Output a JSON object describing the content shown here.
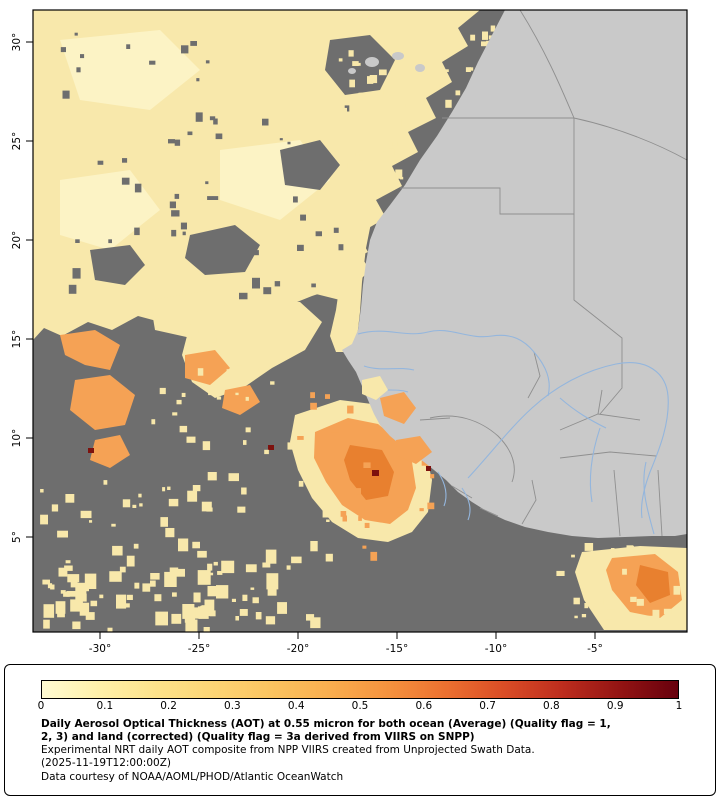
{
  "map": {
    "lat_ticks": [
      "30°",
      "25°",
      "20°",
      "15°",
      "10°",
      "5°"
    ],
    "lon_ticks": [
      "-30°",
      "-25°",
      "-20°",
      "-15°",
      "-10°",
      "-5°"
    ],
    "colors": {
      "no-data": "#6e6e6e",
      "land": "#c9c9c9",
      "border": "#8f8f8f",
      "river": "#94b6dd",
      "aot-low": "#f8e8ab",
      "aot-low2": "#fcf3c5",
      "aot-mid": "#f5a255",
      "aot-high": "#e8802f",
      "aot-extreme": "#7d120e"
    }
  },
  "legend": {
    "ticks": [
      "0",
      "0.1",
      "0.2",
      "0.3",
      "0.4",
      "0.5",
      "0.6",
      "0.7",
      "0.8",
      "0.9",
      "1"
    ],
    "colorbar_range": [
      0,
      1
    ],
    "colorbar_stops": [
      "#fffbd2",
      "#fef0a9",
      "#fde28a",
      "#fcd474",
      "#fbc35f",
      "#f9ad4e",
      "#f5923e",
      "#ec7030",
      "#da4d26",
      "#bd2d1e",
      "#931413",
      "#67000d"
    ],
    "caption_bold_1": "Daily Aerosol Optical Thickness (AOT) at 0.55 micron for both ocean (Average) (Quality flag = 1,",
    "caption_bold_2": "2, 3) and land (corrected) (Quality flag = 3a derived from VIIRS on SNPP)",
    "caption_line_3": "Experimental NRT daily AOT composite from NPP VIIRS created from Unprojected Swath Data.",
    "caption_line_4": "(2025-11-19T12:00:00Z)",
    "caption_line_5": "Data courtesy of NOAA/AOML/PHOD/Atlantic OceanWatch"
  }
}
